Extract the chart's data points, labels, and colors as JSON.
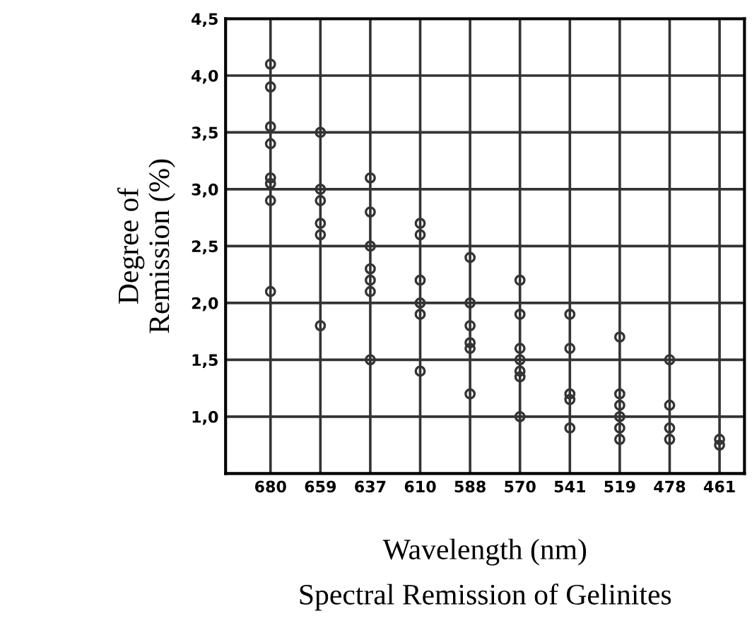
{
  "chart_data": {
    "type": "scatter",
    "title": "Spectral Remission of Gelinites",
    "xlabel": "Wavelength (nm)",
    "ylabel": "Degree of\nRemission (%)",
    "categories": [
      "680",
      "659",
      "637",
      "610",
      "588",
      "570",
      "541",
      "519",
      "478",
      "461"
    ],
    "series": [
      {
        "color": "#333333",
        "values": [
          4.1,
          3.5,
          3.1,
          2.7,
          2.4,
          2.2,
          1.9,
          1.7,
          1.5,
          0.8
        ]
      },
      {
        "color": "#333333",
        "values": [
          3.9,
          3.0,
          2.8,
          2.6,
          2.0,
          1.9,
          1.6,
          1.2,
          1.1,
          0.75
        ]
      },
      {
        "color": "#333333",
        "values": [
          3.55,
          2.9,
          2.5,
          2.2,
          1.8,
          1.6,
          1.2,
          1.1,
          0.9,
          null
        ]
      },
      {
        "color": "#333333",
        "values": [
          3.4,
          2.7,
          2.3,
          2.0,
          1.65,
          1.5,
          1.15,
          1.0,
          0.8,
          null
        ]
      },
      {
        "color": "#333333",
        "values": [
          3.1,
          2.6,
          2.2,
          1.9,
          1.6,
          1.4,
          0.9,
          0.9,
          null,
          null
        ]
      },
      {
        "color": "#333333",
        "values": [
          3.05,
          1.8,
          2.1,
          1.4,
          1.2,
          1.35,
          null,
          0.8,
          null,
          null
        ]
      },
      {
        "color": "#333333",
        "values": [
          2.9,
          null,
          1.5,
          null,
          null,
          1.0,
          null,
          null,
          null,
          null
        ]
      },
      {
        "color": "#333333",
        "values": [
          2.1,
          null,
          null,
          null,
          null,
          null,
          null,
          null,
          null,
          null
        ]
      }
    ],
    "ylim": [
      0.5,
      4.5
    ],
    "yticks": [
      {
        "value": 1.0,
        "label": "1,0"
      },
      {
        "value": 1.5,
        "label": "1,5"
      },
      {
        "value": 2.0,
        "label": "2,0"
      },
      {
        "value": 2.5,
        "label": "2,5"
      },
      {
        "value": 3.0,
        "label": "3,0"
      },
      {
        "value": 3.5,
        "label": "3,5"
      },
      {
        "value": 4.0,
        "label": "4,0"
      },
      {
        "value": 4.5,
        "label": "4,5"
      }
    ],
    "grid": true,
    "marker": "circle",
    "legend": false
  }
}
